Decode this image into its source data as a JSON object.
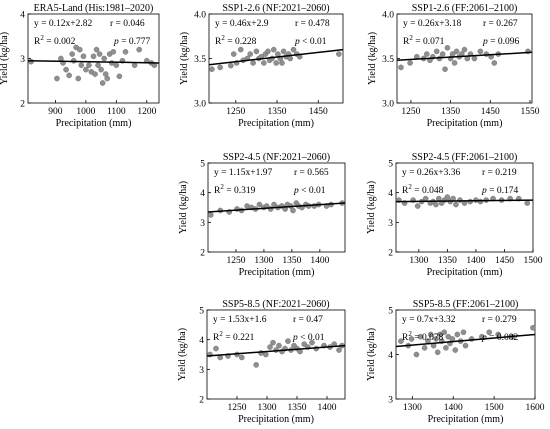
{
  "chart_data": [
    {
      "id": "era5",
      "type": "scatter",
      "title": "ERA5-Land (His:1981–2020)",
      "xlabel": "Precipitation (mm)",
      "ylabel": "Yield (kg/ha)",
      "xlim": [
        810,
        1240
      ],
      "ylim": [
        2,
        4
      ],
      "xticks": [
        900,
        1000,
        1100,
        1200
      ],
      "yticks": [
        2,
        3,
        4
      ],
      "equation": "y = 0.12x+2.82",
      "r": "r = 0.046",
      "r2_value": "= 0.002",
      "p_value": "= 0.777",
      "fit": {
        "slope_per_100mm": 0.012,
        "y_at_xmin": 2.95,
        "y_at_xmax": 2.9
      },
      "points": [
        [
          820,
          2.93
        ],
        [
          905,
          2.55
        ],
        [
          918,
          3.0
        ],
        [
          925,
          2.9
        ],
        [
          935,
          2.75
        ],
        [
          945,
          2.62
        ],
        [
          955,
          3.1
        ],
        [
          960,
          2.95
        ],
        [
          968,
          3.25
        ],
        [
          975,
          2.55
        ],
        [
          980,
          3.2
        ],
        [
          985,
          2.85
        ],
        [
          992,
          3.05
        ],
        [
          1000,
          2.75
        ],
        [
          1010,
          2.85
        ],
        [
          1018,
          2.7
        ],
        [
          1025,
          3.05
        ],
        [
          1030,
          2.65
        ],
        [
          1035,
          3.2
        ],
        [
          1040,
          2.85
        ],
        [
          1045,
          3.1
        ],
        [
          1050,
          2.75
        ],
        [
          1055,
          2.45
        ],
        [
          1060,
          3.0
        ],
        [
          1065,
          2.65
        ],
        [
          1070,
          2.55
        ],
        [
          1078,
          3.1
        ],
        [
          1085,
          2.9
        ],
        [
          1090,
          3.15
        ],
        [
          1100,
          2.85
        ],
        [
          1110,
          2.6
        ],
        [
          1120,
          2.95
        ],
        [
          1130,
          3.15
        ],
        [
          1160,
          2.85
        ],
        [
          1175,
          3.2
        ],
        [
          1200,
          2.95
        ],
        [
          1215,
          2.9
        ],
        [
          1225,
          2.85
        ]
      ]
    },
    {
      "id": "ssp126-nf",
      "type": "scatter",
      "title": "SSP1-2.6 (NF:2021–2060)",
      "xlabel": "Precipitation (mm)",
      "ylabel": "",
      "xlim": [
        1185,
        1510
      ],
      "ylim": [
        3,
        4
      ],
      "xticks": [
        1250,
        1350,
        1450
      ],
      "yticks": [
        3.0,
        3.5,
        4.0
      ],
      "equation": "y = 0.46x+2.9",
      "r": "r = 0.478",
      "r2_value": "= 0.228",
      "p_value": "< 0.01",
      "fit": {
        "y_at_xmin": 3.43,
        "y_at_xmax": 3.6
      },
      "points": [
        [
          1192,
          3.38
        ],
        [
          1212,
          3.4
        ],
        [
          1238,
          3.42
        ],
        [
          1245,
          3.55
        ],
        [
          1252,
          3.45
        ],
        [
          1262,
          3.6
        ],
        [
          1268,
          3.48
        ],
        [
          1278,
          3.5
        ],
        [
          1285,
          3.55
        ],
        [
          1292,
          3.45
        ],
        [
          1300,
          3.58
        ],
        [
          1306,
          3.5
        ],
        [
          1312,
          3.52
        ],
        [
          1318,
          3.45
        ],
        [
          1322,
          3.55
        ],
        [
          1328,
          3.58
        ],
        [
          1332,
          3.48
        ],
        [
          1338,
          3.5
        ],
        [
          1342,
          3.6
        ],
        [
          1348,
          3.45
        ],
        [
          1352,
          3.55
        ],
        [
          1358,
          3.5
        ],
        [
          1362,
          3.45
        ],
        [
          1366,
          3.58
        ],
        [
          1372,
          3.52
        ],
        [
          1378,
          3.55
        ],
        [
          1382,
          3.5
        ],
        [
          1390,
          3.6
        ],
        [
          1398,
          3.55
        ],
        [
          1405,
          3.52
        ],
        [
          1500,
          3.55
        ]
      ]
    },
    {
      "id": "ssp126-ff",
      "type": "scatter",
      "title": "SSP1-2.6 (FF:2061–2100)",
      "xlabel": "Precipitation (mm)",
      "ylabel": "",
      "xlim": [
        1215,
        1555
      ],
      "ylim": [
        3,
        4
      ],
      "xticks": [
        1250,
        1350,
        1450,
        1550
      ],
      "yticks": [
        3.0,
        3.5,
        4.0
      ],
      "equation": "y = 0.26x+3.18",
      "r": "r = 0.267",
      "r2_value": "= 0.071",
      "p_value": "= 0.096",
      "fit": {
        "y_at_xmin": 3.48,
        "y_at_xmax": 3.57
      },
      "points": [
        [
          1225,
          3.4
        ],
        [
          1248,
          3.45
        ],
        [
          1265,
          3.52
        ],
        [
          1282,
          3.5
        ],
        [
          1290,
          3.55
        ],
        [
          1298,
          3.48
        ],
        [
          1305,
          3.52
        ],
        [
          1315,
          3.58
        ],
        [
          1322,
          3.5
        ],
        [
          1330,
          3.55
        ],
        [
          1336,
          3.38
        ],
        [
          1342,
          3.62
        ],
        [
          1350,
          3.5
        ],
        [
          1355,
          3.55
        ],
        [
          1360,
          3.45
        ],
        [
          1365,
          3.58
        ],
        [
          1372,
          3.52
        ],
        [
          1378,
          3.55
        ],
        [
          1385,
          3.6
        ],
        [
          1392,
          3.5
        ],
        [
          1400,
          3.55
        ],
        [
          1410,
          3.5
        ],
        [
          1425,
          3.58
        ],
        [
          1440,
          3.55
        ],
        [
          1452,
          3.52
        ],
        [
          1460,
          3.45
        ],
        [
          1470,
          3.55
        ],
        [
          1545,
          3.58
        ]
      ]
    },
    {
      "id": "ssp245-nf",
      "type": "scatter",
      "title": "SSP2-4.5 (NF:2021–2060)",
      "xlabel": "Precipitation (mm)",
      "ylabel": "",
      "xlim": [
        1200,
        1445
      ],
      "ylim": [
        2,
        5
      ],
      "xticks": [
        1250,
        1300,
        1350,
        1400
      ],
      "yticks": [
        2,
        3,
        4,
        5
      ],
      "equation": "y = 1.15x+1.97",
      "r": "r = 0.565",
      "r2_value": "= 0.319",
      "p_value": "< 0.01",
      "fit": {
        "y_at_xmin": 3.35,
        "y_at_xmax": 3.65
      },
      "points": [
        [
          1205,
          3.25
        ],
        [
          1222,
          3.4
        ],
        [
          1238,
          3.35
        ],
        [
          1252,
          3.45
        ],
        [
          1260,
          3.4
        ],
        [
          1270,
          3.55
        ],
        [
          1278,
          3.5
        ],
        [
          1285,
          3.45
        ],
        [
          1292,
          3.6
        ],
        [
          1300,
          3.5
        ],
        [
          1305,
          3.55
        ],
        [
          1312,
          3.45
        ],
        [
          1318,
          3.6
        ],
        [
          1325,
          3.5
        ],
        [
          1332,
          3.55
        ],
        [
          1338,
          3.45
        ],
        [
          1342,
          3.6
        ],
        [
          1348,
          3.55
        ],
        [
          1352,
          3.4
        ],
        [
          1358,
          3.65
        ],
        [
          1362,
          3.55
        ],
        [
          1368,
          3.5
        ],
        [
          1375,
          3.6
        ],
        [
          1380,
          3.55
        ],
        [
          1390,
          3.55
        ],
        [
          1398,
          3.6
        ],
        [
          1412,
          3.55
        ],
        [
          1420,
          3.6
        ],
        [
          1440,
          3.65
        ]
      ]
    },
    {
      "id": "ssp245-ff",
      "type": "scatter",
      "title": "SSP2-4.5 (FF:2061–2100)",
      "xlabel": "Precipitation (mm)",
      "ylabel": "",
      "xlim": [
        1260,
        1500
      ],
      "ylim": [
        2,
        5
      ],
      "xticks": [
        1300,
        1350,
        1400,
        1450,
        1500
      ],
      "yticks": [
        2,
        3,
        4,
        5
      ],
      "equation": "y = 0.26x+3.36",
      "r": "r = 0.219",
      "r2_value": "= 0.048",
      "p_value": "= 0.174",
      "fit": {
        "y_at_xmin": 3.7,
        "y_at_xmax": 3.75
      },
      "points": [
        [
          1265,
          3.75
        ],
        [
          1275,
          3.65
        ],
        [
          1290,
          3.75
        ],
        [
          1298,
          3.55
        ],
        [
          1305,
          3.7
        ],
        [
          1312,
          3.8
        ],
        [
          1320,
          3.65
        ],
        [
          1325,
          3.7
        ],
        [
          1330,
          3.6
        ],
        [
          1335,
          3.8
        ],
        [
          1340,
          3.65
        ],
        [
          1345,
          3.75
        ],
        [
          1350,
          3.85
        ],
        [
          1355,
          3.7
        ],
        [
          1360,
          3.8
        ],
        [
          1365,
          3.6
        ],
        [
          1372,
          3.75
        ],
        [
          1380,
          3.65
        ],
        [
          1390,
          3.7
        ],
        [
          1400,
          3.75
        ],
        [
          1408,
          3.7
        ],
        [
          1418,
          3.75
        ],
        [
          1430,
          3.8
        ],
        [
          1445,
          3.75
        ],
        [
          1460,
          3.8
        ],
        [
          1475,
          3.8
        ],
        [
          1490,
          3.65
        ]
      ]
    },
    {
      "id": "ssp585-nf",
      "type": "scatter",
      "title": "SSP5-8.5 (NF:2021–2060)",
      "xlabel": "Precipitation (mm)",
      "ylabel": "",
      "xlim": [
        1200,
        1430
      ],
      "ylim": [
        2,
        5
      ],
      "xticks": [
        1250,
        1300,
        1350,
        1400
      ],
      "yticks": [
        2,
        3,
        4,
        5
      ],
      "equation": "y = 1.53x+1.6",
      "r": "r = 0.47",
      "r2_value": "= 0.221",
      "p_value": "< 0.01",
      "fit": {
        "y_at_xmin": 3.45,
        "y_at_xmax": 3.8
      },
      "points": [
        [
          1205,
          3.5
        ],
        [
          1215,
          3.7
        ],
        [
          1222,
          3.4
        ],
        [
          1235,
          3.45
        ],
        [
          1250,
          3.5
        ],
        [
          1258,
          3.4
        ],
        [
          1282,
          3.15
        ],
        [
          1290,
          3.55
        ],
        [
          1298,
          3.5
        ],
        [
          1305,
          3.75
        ],
        [
          1310,
          3.9
        ],
        [
          1315,
          3.65
        ],
        [
          1320,
          3.8
        ],
        [
          1325,
          3.6
        ],
        [
          1330,
          3.7
        ],
        [
          1335,
          3.95
        ],
        [
          1340,
          3.65
        ],
        [
          1345,
          3.8
        ],
        [
          1350,
          3.7
        ],
        [
          1355,
          3.6
        ],
        [
          1362,
          3.85
        ],
        [
          1368,
          3.75
        ],
        [
          1375,
          3.9
        ],
        [
          1382,
          3.7
        ],
        [
          1395,
          3.8
        ],
        [
          1405,
          3.75
        ],
        [
          1412,
          3.85
        ],
        [
          1420,
          3.65
        ],
        [
          1425,
          3.8
        ]
      ]
    },
    {
      "id": "ssp585-ff",
      "type": "scatter",
      "title": "SSP5-8.5 (FF:2061–2100)",
      "xlabel": "Precipitation (mm)",
      "ylabel": "",
      "xlim": [
        1260,
        1600
      ],
      "ylim": [
        3,
        5
      ],
      "xticks": [
        1300,
        1400,
        1500,
        1600
      ],
      "yticks": [
        3,
        4,
        5
      ],
      "equation": "y = 0.7x+3.32",
      "r": "r = 0.279",
      "r2_value": "= 0.078",
      "p_value": "= 0.082",
      "fit": {
        "y_at_xmin": 4.18,
        "y_at_xmax": 4.45
      },
      "points": [
        [
          1272,
          4.3
        ],
        [
          1290,
          4.2
        ],
        [
          1298,
          4.35
        ],
        [
          1310,
          4.0
        ],
        [
          1320,
          4.4
        ],
        [
          1330,
          4.15
        ],
        [
          1338,
          4.3
        ],
        [
          1345,
          4.45
        ],
        [
          1352,
          4.2
        ],
        [
          1358,
          4.35
        ],
        [
          1362,
          4.05
        ],
        [
          1368,
          4.45
        ],
        [
          1372,
          4.3
        ],
        [
          1378,
          4.5
        ],
        [
          1382,
          4.15
        ],
        [
          1388,
          4.4
        ],
        [
          1392,
          4.25
        ],
        [
          1398,
          4.35
        ],
        [
          1405,
          4.1
        ],
        [
          1410,
          4.45
        ],
        [
          1418,
          4.3
        ],
        [
          1425,
          4.5
        ],
        [
          1430,
          4.2
        ],
        [
          1445,
          4.35
        ],
        [
          1470,
          4.4
        ],
        [
          1488,
          4.5
        ],
        [
          1510,
          4.45
        ],
        [
          1545,
          4.4
        ],
        [
          1595,
          4.6
        ]
      ]
    }
  ]
}
